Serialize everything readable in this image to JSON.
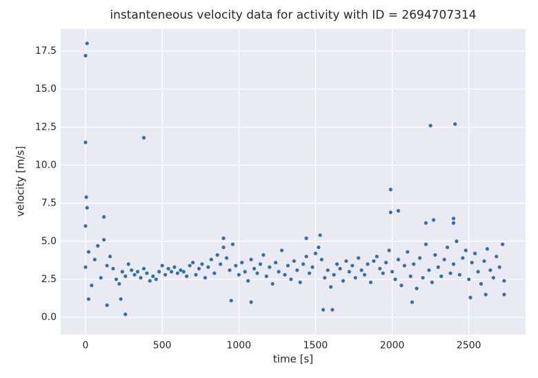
{
  "chart_data": {
    "type": "scatter",
    "title": "instanteneous velocity data for activity with ID = 2694707314",
    "x_label": "time [s]",
    "y_label": "velocity [m/s]",
    "color": "#2f71ad",
    "grid": true,
    "xlim": [
      -162,
      2870
    ],
    "ylim": [
      -1.13,
      18.95
    ],
    "xticks": [
      0,
      500,
      1000,
      1500,
      2000,
      2500
    ],
    "yticks": [
      {
        "value": 0,
        "label": "0.0"
      },
      2.5,
      {
        "value": 5,
        "label": "5.0"
      },
      7.5,
      {
        "value": 10,
        "label": "10.0"
      },
      12.5,
      {
        "value": 15,
        "label": "15.0"
      },
      17.5
    ],
    "x": [
      0,
      10,
      0,
      5,
      10,
      0,
      120,
      380,
      260,
      1990,
      1990,
      2040,
      2250,
      2410,
      2400,
      2400,
      2220,
      2270,
      1530,
      1550,
      1610,
      1080,
      950,
      20,
      140,
      230,
      2130,
      2510,
      2610,
      2730,
      1440,
      900,
      0,
      20,
      40,
      60,
      80,
      100,
      120,
      140,
      160,
      180,
      200,
      220,
      240,
      260,
      280,
      300,
      320,
      340,
      360,
      380,
      400,
      420,
      440,
      460,
      480,
      500,
      520,
      540,
      560,
      580,
      600,
      620,
      640,
      660,
      680,
      700,
      720,
      740,
      760,
      780,
      800,
      820,
      840,
      860,
      880,
      900,
      920,
      940,
      960,
      980,
      1000,
      1020,
      1040,
      1060,
      1080,
      1100,
      1120,
      1140,
      1160,
      1180,
      1200,
      1220,
      1240,
      1260,
      1280,
      1300,
      1320,
      1340,
      1360,
      1380,
      1400,
      1420,
      1440,
      1460,
      1480,
      1500,
      1520,
      1540,
      1560,
      1580,
      1600,
      1620,
      1640,
      1660,
      1680,
      1700,
      1720,
      1740,
      1760,
      1780,
      1800,
      1820,
      1840,
      1860,
      1880,
      1900,
      1920,
      1940,
      1960,
      1980,
      2000,
      2020,
      2040,
      2060,
      2080,
      2100,
      2120,
      2140,
      2160,
      2180,
      2200,
      2220,
      2240,
      2260,
      2280,
      2300,
      2320,
      2340,
      2360,
      2380,
      2400,
      2420,
      2440,
      2460,
      2480,
      2500,
      2520,
      2540,
      2560,
      2580,
      2600,
      2620,
      2640,
      2660,
      2680,
      2700,
      2720,
      2730
    ],
    "values": [
      17.2,
      18.0,
      11.5,
      7.9,
      7.2,
      6.0,
      6.6,
      11.8,
      0.2,
      8.4,
      6.9,
      7.0,
      12.6,
      12.7,
      6.5,
      6.2,
      6.2,
      6.4,
      5.4,
      0.5,
      0.5,
      1.0,
      1.1,
      1.2,
      0.8,
      1.2,
      1.0,
      1.3,
      1.5,
      1.5,
      5.2,
      5.2,
      3.3,
      4.3,
      2.1,
      3.8,
      4.7,
      2.6,
      5.1,
      3.4,
      4.0,
      3.2,
      2.5,
      2.2,
      3.0,
      2.7,
      3.5,
      3.1,
      2.8,
      3.0,
      2.6,
      3.2,
      2.9,
      2.4,
      2.7,
      2.5,
      3.0,
      3.4,
      2.8,
      3.2,
      3.0,
      3.3,
      2.9,
      3.1,
      3.0,
      2.7,
      3.4,
      3.6,
      2.8,
      3.2,
      3.5,
      2.6,
      3.3,
      3.8,
      2.9,
      4.1,
      3.5,
      4.6,
      3.9,
      3.1,
      4.8,
      3.4,
      2.8,
      3.6,
      3.0,
      2.4,
      3.8,
      3.2,
      2.9,
      3.5,
      4.1,
      2.7,
      3.3,
      2.2,
      3.6,
      3.0,
      4.4,
      2.8,
      3.4,
      2.5,
      3.7,
      3.1,
      2.3,
      3.5,
      4.0,
      2.9,
      3.3,
      4.2,
      4.6,
      3.8,
      2.6,
      3.1,
      2.0,
      2.8,
      3.5,
      3.2,
      2.4,
      3.7,
      3.0,
      3.4,
      2.6,
      3.9,
      3.1,
      2.8,
      3.5,
      2.3,
      3.7,
      4.0,
      3.2,
      2.9,
      3.6,
      4.4,
      3.0,
      2.5,
      3.8,
      2.1,
      3.4,
      4.3,
      2.7,
      3.5,
      1.9,
      3.9,
      2.6,
      4.8,
      3.1,
      2.3,
      4.1,
      3.3,
      2.7,
      3.8,
      4.6,
      2.9,
      3.5,
      5.0,
      2.8,
      3.9,
      4.4,
      2.5,
      3.6,
      4.2,
      3.0,
      2.2,
      3.7,
      4.5,
      3.1,
      2.6,
      4.0,
      3.3,
      4.8,
      2.4
    ]
  }
}
